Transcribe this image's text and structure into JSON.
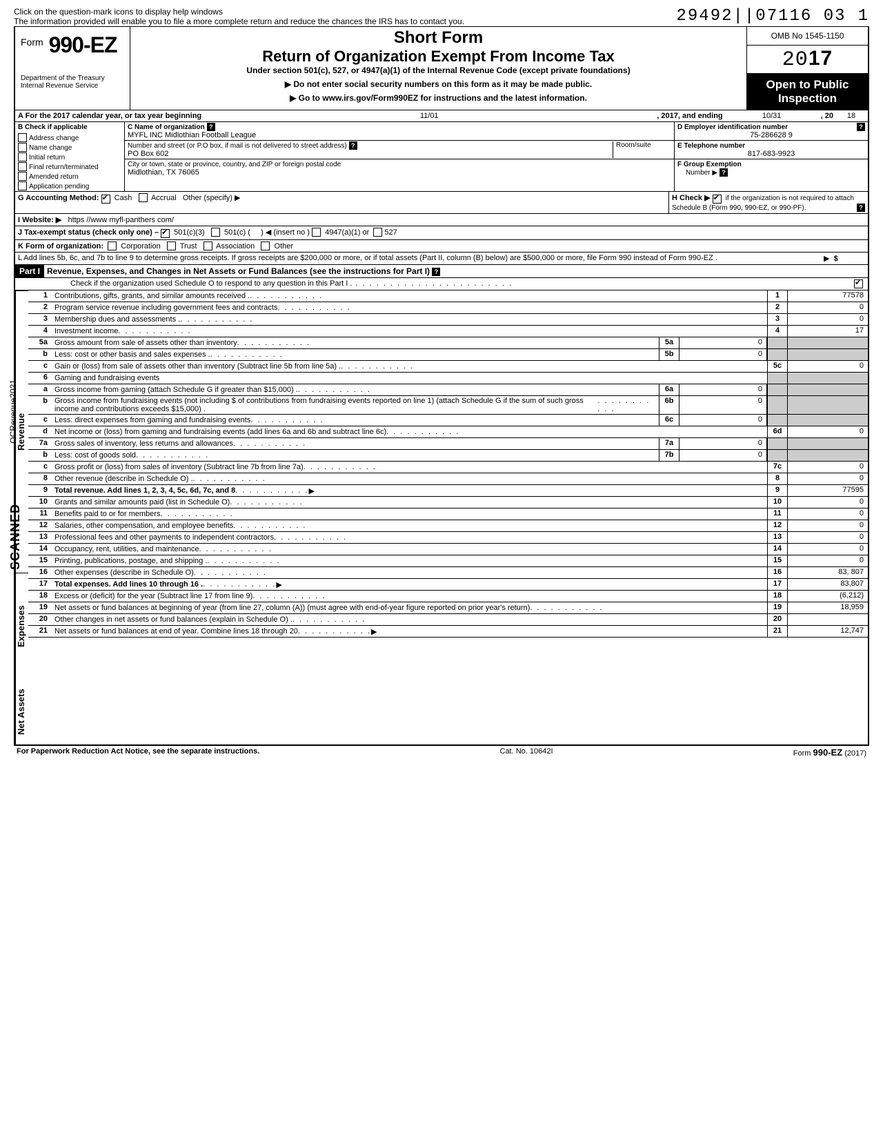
{
  "dln": "29492||07116 03",
  "dln_suffix": "1",
  "help_line1": "Click on the question-mark icons to display help windows",
  "help_line2": "The information provided will enable you to file a more complete return and reduce the chances the IRS has to contact you.",
  "form_label": "Form",
  "form_no": "990-EZ",
  "dept1": "Department of the Treasury",
  "dept2": "Internal Revenue Service",
  "title_short": "Short Form",
  "title_return": "Return of Organization Exempt From Income Tax",
  "title_under": "Under section 501(c), 527, or 4947(a)(1) of the Internal Revenue Code (except private foundations)",
  "arrow1": "▶ Do not enter social security numbers on this form as it may be made public.",
  "arrow2": "▶ Go to www.irs.gov/Form990EZ for instructions and the latest information.",
  "omb": "OMB No 1545-1150",
  "year_prefix": "20",
  "year_suffix": "17",
  "open_public1": "Open to Public",
  "open_public2": "Inspection",
  "rowA_pre": "A For the 2017 calendar year, or tax year beginning",
  "rowA_begin": "11/01",
  "rowA_mid": ", 2017, and ending",
  "rowA_end": "10/31",
  "rowA_suf": ", 20",
  "rowA_yy": "18",
  "B_label": "B  Check if applicable",
  "B_opts": [
    "Address change",
    "Name change",
    "Initial return",
    "Final return/terminated",
    "Amended return",
    "Application pending"
  ],
  "C_label": "C  Name of organization",
  "C_value": "MYFL INC Midlothian Football League",
  "C_street_label": "Number and street (or P.O  box, if mail is not delivered to street address)",
  "C_room": "Room/suite",
  "C_street": "PO Box 602",
  "C_city_label": "City or town, state or province, country, and ZIP or foreign postal code",
  "C_city": "Midlothian, TX 76065",
  "D_label": "D Employer identification number",
  "D_value": "75-286628 9",
  "E_label": "E  Telephone number",
  "E_value": "817-683-9923",
  "F_label": "F  Group Exemption",
  "F_label2": "Number ▶",
  "G_label": "G  Accounting Method:",
  "G_cash": "Cash",
  "G_accrual": "Accrual",
  "G_other": "Other (specify) ▶",
  "H_label": "H  Check ▶",
  "H_text": "if the organization is not required to attach Schedule B (Form 990, 990-EZ, or 990-PF).",
  "I_label": "I   Website: ▶",
  "I_value": "https //www myfl-panthers com/",
  "J_label": "J  Tax-exempt status (check only one) – ",
  "J_501c3": "501(c)(3)",
  "J_501c": "501(c) (",
  "J_insert": ") ◀ (insert no )",
  "J_4947": "4947(a)(1) or",
  "J_527": "527",
  "K_label": "K  Form of organization:",
  "K_corp": "Corporation",
  "K_trust": "Trust",
  "K_assoc": "Association",
  "K_other": "Other",
  "L_text": "L  Add lines 5b, 6c, and 7b to line 9 to determine gross receipts. If gross receipts are $200,000 or more, or if total assets (Part II, column (B) below) are $500,000 or more, file Form 990 instead of Form 990-EZ .",
  "L_arrow": "▶",
  "L_dollar": "$",
  "part1": "Part I",
  "part1_title": "Revenue, Expenses, and Changes in Net Assets or Fund Balances (see the instructions for Part I)",
  "part1_check": "Check if the organization used Schedule O to respond to any question in this Part I .",
  "lines": {
    "l1": {
      "n": "1",
      "t": "Contributions, gifts, grants, and similar amounts received .",
      "bn": "1",
      "v": "77578"
    },
    "l2": {
      "n": "2",
      "t": "Program service revenue including government fees and contracts",
      "bn": "2",
      "v": "0"
    },
    "l3": {
      "n": "3",
      "t": "Membership dues and assessments .",
      "bn": "3",
      "v": "0"
    },
    "l4": {
      "n": "4",
      "t": "Investment income",
      "bn": "4",
      "v": "17"
    },
    "l5a": {
      "n": "5a",
      "t": "Gross amount from sale of assets other than inventory",
      "in": "5a",
      "iv": "0"
    },
    "l5b": {
      "n": "b",
      "t": "Less: cost or other basis and sales expenses .",
      "in": "5b",
      "iv": "0"
    },
    "l5c": {
      "n": "c",
      "t": "Gain or (loss) from sale of assets other than inventory (Subtract line 5b from line 5a) .",
      "bn": "5c",
      "v": "0"
    },
    "l6": {
      "n": "6",
      "t": "Gaming and fundraising events"
    },
    "l6a": {
      "n": "a",
      "t": "Gross income from gaming (attach Schedule G if greater than $15,000) .",
      "in": "6a",
      "iv": "0"
    },
    "l6b": {
      "n": "b",
      "t": "Gross income from fundraising events (not including  $                              of contributions from fundraising events reported on line 1) (attach Schedule G if the sum of such gross income and contributions exceeds $15,000) .",
      "in": "6b",
      "iv": "0"
    },
    "l6c": {
      "n": "c",
      "t": "Less: direct expenses from gaming and fundraising events",
      "in": "6c",
      "iv": "0"
    },
    "l6d": {
      "n": "d",
      "t": "Net income or (loss) from gaming and fundraising events (add lines 6a and 6b and subtract line 6c)",
      "bn": "6d",
      "v": "0"
    },
    "l7a": {
      "n": "7a",
      "t": "Gross sales of inventory, less returns and allowances",
      "in": "7a",
      "iv": "0"
    },
    "l7b": {
      "n": "b",
      "t": "Less: cost of goods sold",
      "in": "7b",
      "iv": "0"
    },
    "l7c": {
      "n": "c",
      "t": "Gross profit or (loss) from sales of inventory (Subtract line 7b from line 7a)",
      "bn": "7c",
      "v": "0"
    },
    "l8": {
      "n": "8",
      "t": "Other revenue (describe in Schedule O) .",
      "bn": "8",
      "v": "0"
    },
    "l9": {
      "n": "9",
      "t": "Total revenue. Add lines 1, 2, 3, 4, 5c, 6d, 7c, and 8",
      "bn": "9",
      "v": "77595",
      "bold": true,
      "arr": true
    },
    "l10": {
      "n": "10",
      "t": "Grants and similar amounts paid (list in Schedule O)",
      "bn": "10",
      "v": "0"
    },
    "l11": {
      "n": "11",
      "t": "Benefits paid to or for members",
      "bn": "11",
      "v": "0"
    },
    "l12": {
      "n": "12",
      "t": "Salaries, other compensation, and employee benefits",
      "bn": "12",
      "v": "0"
    },
    "l13": {
      "n": "13",
      "t": "Professional fees and other payments to independent contractors",
      "bn": "13",
      "v": "0"
    },
    "l14": {
      "n": "14",
      "t": "Occupancy, rent, utilities, and maintenance",
      "bn": "14",
      "v": "0"
    },
    "l15": {
      "n": "15",
      "t": "Printing, publications, postage, and shipping .",
      "bn": "15",
      "v": "0"
    },
    "l16": {
      "n": "16",
      "t": "Other expenses (describe in Schedule O)",
      "bn": "16",
      "v": "83, 807"
    },
    "l17": {
      "n": "17",
      "t": "Total expenses. Add lines 10 through 16 .",
      "bn": "17",
      "v": "83,807",
      "bold": true,
      "arr": true
    },
    "l18": {
      "n": "18",
      "t": "Excess or (deficit) for the year (Subtract line 17 from line 9)",
      "bn": "18",
      "v": "(6,212)"
    },
    "l19": {
      "n": "19",
      "t": "Net assets or fund balances at beginning of year (from line 27, column (A)) (must agree with end-of-year figure reported on prior year's return)",
      "bn": "19",
      "v": "18,959"
    },
    "l20": {
      "n": "20",
      "t": "Other changes in net assets or fund balances (explain in Schedule O) .",
      "bn": "20",
      "v": ""
    },
    "l21": {
      "n": "21",
      "t": "Net assets or fund balances at end of year. Combine lines 18 through 20",
      "bn": "21",
      "v": "12,747",
      "arr": true
    }
  },
  "side_rev": "Revenue",
  "side_exp": "Expenses",
  "side_net": "Net Assets",
  "scanned": "SCANNED",
  "ogden": "OCRevenue2021",
  "footer_left": "For Paperwork Reduction Act Notice, see the separate instructions.",
  "footer_mid": "Cat. No. 10642I",
  "footer_right_pre": "Form ",
  "footer_right_form": "990-EZ",
  "footer_right_yr": " (2017)"
}
